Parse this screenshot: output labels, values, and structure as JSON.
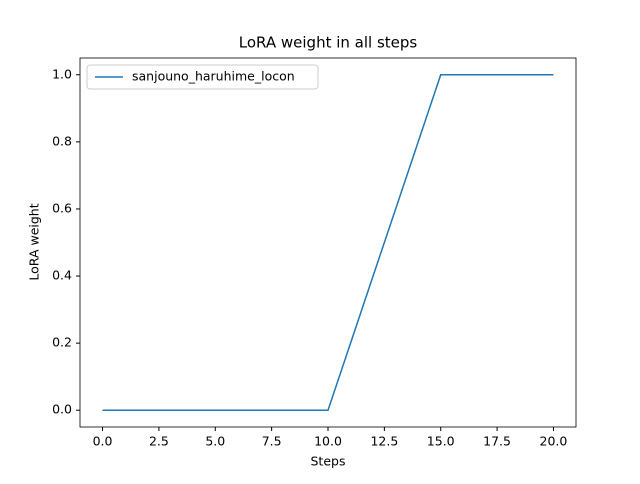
{
  "chart_data": {
    "type": "line",
    "title": "LoRA weight in all steps",
    "xlabel": "Steps",
    "ylabel": "LoRA weight",
    "x": [
      0,
      1,
      2,
      3,
      4,
      5,
      6,
      7,
      8,
      9,
      10,
      11,
      12,
      13,
      14,
      15,
      16,
      17,
      18,
      19,
      20
    ],
    "series": [
      {
        "name": "sanjouno_haruhime_locon",
        "color": "#1f77b4",
        "values": [
          0,
          0,
          0,
          0,
          0,
          0,
          0,
          0,
          0,
          0,
          0,
          0.2,
          0.4,
          0.6,
          0.8,
          1,
          1,
          1,
          1,
          1,
          1
        ]
      }
    ],
    "xlim": [
      -1,
      21
    ],
    "xticks": [
      {
        "value": 0,
        "label": "0.0"
      },
      2.5,
      {
        "value": 5,
        "label": "5.0"
      },
      7.5,
      {
        "value": 10,
        "label": "10.0"
      },
      12.5,
      {
        "value": 15,
        "label": "15.0"
      },
      17.5,
      {
        "value": 20,
        "label": "20.0"
      }
    ],
    "ylim": [
      -0.05,
      1.05
    ],
    "yticks": [
      {
        "value": 0,
        "label": "0.0"
      },
      0.2,
      0.4,
      0.6,
      0.8,
      {
        "value": 1,
        "label": "1.0"
      }
    ],
    "legend": "upper-left"
  }
}
